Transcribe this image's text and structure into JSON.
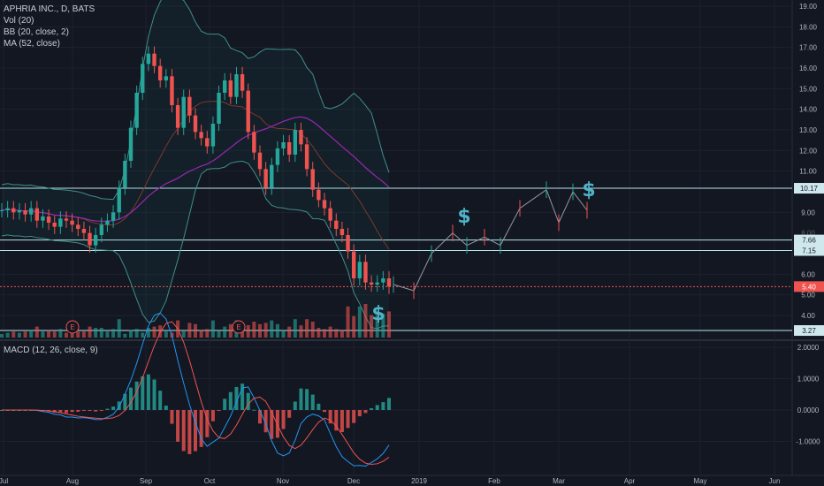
{
  "symbol_title": "APHRIA INC., D, BATS",
  "indicators": [
    "Vol (20)",
    "BB (20, close, 2)",
    "MA (52, close)"
  ],
  "macd_title": "MACD (12, 26, close, 9)",
  "price_axis": {
    "labels": [
      "19.00",
      "18.00",
      "17.00",
      "16.00",
      "15.00",
      "14.00",
      "13.00",
      "12.00",
      "11.00",
      "9.00",
      "6.00",
      "5.00",
      "4.00"
    ],
    "values": [
      19,
      18,
      17,
      16,
      15,
      14,
      13,
      12,
      11,
      9,
      6,
      5,
      4
    ]
  },
  "price_tags": [
    {
      "label": "10.17",
      "value": 10.17,
      "color": "#cfe8ee"
    },
    {
      "label": "7.66",
      "value": 7.66,
      "color": "#cfe8ee"
    },
    {
      "label": "7.15",
      "value": 7.15,
      "color": "#cfe8ee"
    },
    {
      "label": "5.40",
      "value": 5.4,
      "color": "#ef5350"
    },
    {
      "label": "3.27",
      "value": 3.27,
      "color": "#cfe8ee"
    }
  ],
  "faint_labels": [
    {
      "label": "8.00",
      "value": 8
    }
  ],
  "macd_axis": {
    "labels": [
      "2.0000",
      "1.0000",
      "0.0000",
      "-1.0000"
    ],
    "values": [
      2,
      1,
      0,
      -1
    ]
  },
  "time_axis": [
    "Jul",
    "Aug",
    "Sep",
    "Oct",
    "Nov",
    "Dec",
    "2019",
    "Feb",
    "Mar",
    "Apr",
    "May",
    "Jun"
  ],
  "earnings_marker": "E",
  "dollar_sign": "$",
  "colors": {
    "up": "#26a69a",
    "down": "#ef5350",
    "bb": "#3f8f8a",
    "ma": "#9c27b0",
    "macd": "#2196f3",
    "signal": "#ef5350",
    "level": "#b7e4ec",
    "text": "#b2b5be"
  },
  "chart_data": {
    "type": "candlestick",
    "title": "APHRIA INC., D, BATS",
    "x": [
      "Jul",
      "Aug",
      "Sep",
      "Oct",
      "Nov",
      "Dec",
      "2019",
      "Feb",
      "Mar",
      "Apr",
      "May",
      "Jun"
    ],
    "price_series": [
      9.1,
      9.2,
      9.0,
      9.1,
      8.9,
      9.2,
      8.6,
      8.8,
      8.5,
      8.3,
      8.7,
      8.6,
      8.4,
      8.2,
      8.0,
      7.4,
      7.9,
      8.4,
      8.6,
      9.0,
      10.2,
      11.5,
      13.1,
      14.8,
      16.2,
      16.7,
      16.1,
      15.4,
      15.6,
      14.2,
      13.1,
      14.6,
      13.7,
      12.9,
      12.6,
      12.2,
      13.3,
      14.8,
      15.4,
      14.6,
      15.7,
      14.9,
      12.9,
      11.9,
      11.1,
      10.2,
      11.3,
      12.1,
      12.4,
      11.8,
      13.0,
      12.3,
      11.1,
      10.1,
      9.6,
      9.2,
      8.6,
      8.2,
      7.9,
      7.1,
      5.8,
      6.6,
      5.6,
      5.5,
      5.6,
      5.8,
      5.4
    ],
    "forecast_path": [
      [
        5.5,
        "Dec"
      ],
      [
        5.2,
        "2019"
      ],
      [
        7.0,
        "2019"
      ],
      [
        8.0,
        "Jan"
      ],
      [
        7.4,
        "Jan"
      ],
      [
        7.8,
        "Feb"
      ],
      [
        7.4,
        "Feb"
      ],
      [
        9.2,
        "Feb"
      ],
      [
        10.1,
        "Mar"
      ],
      [
        8.5,
        "Mar"
      ],
      [
        10.0,
        "Mar"
      ],
      [
        9.1,
        "Mar"
      ]
    ],
    "levels": [
      10.17,
      7.66,
      7.15,
      5.4,
      3.27
    ],
    "ylim": [
      3,
      19.5
    ],
    "macd_ylim": [
      -1.6,
      2.1
    ],
    "volume": "relative bars",
    "legend": [
      "Vol (20)",
      "BB (20, close, 2)",
      "MA (52, close)"
    ]
  }
}
